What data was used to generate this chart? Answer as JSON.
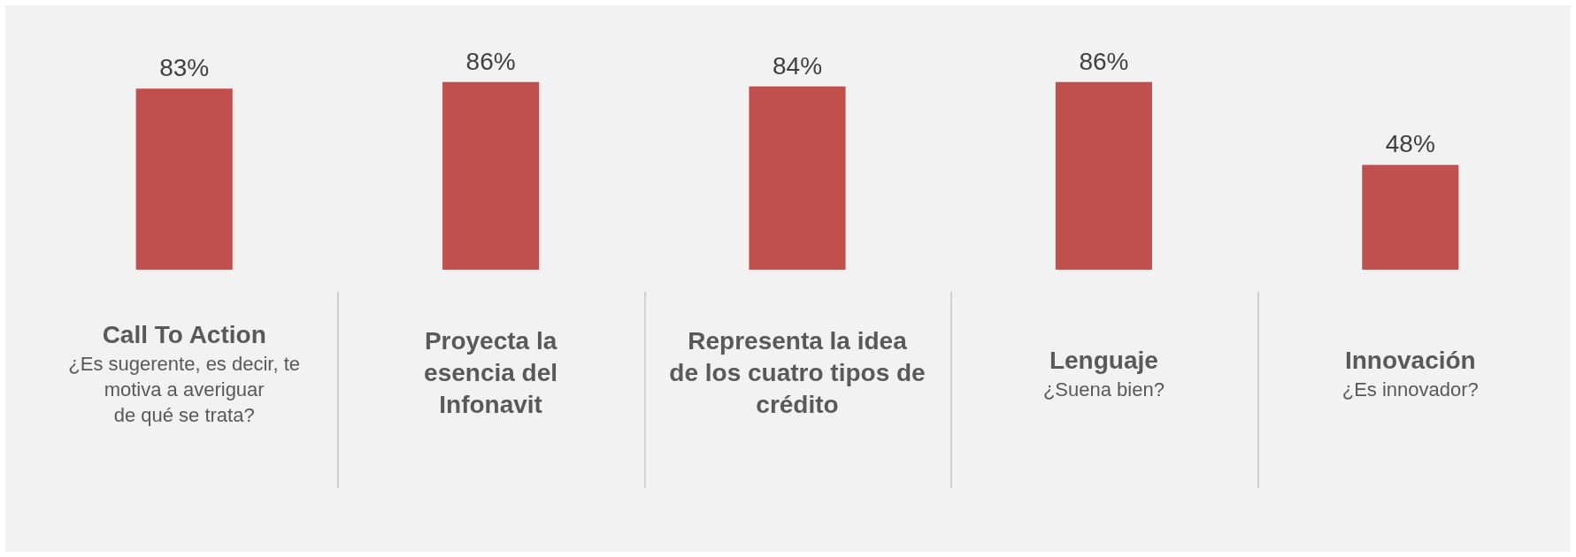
{
  "chart_data": {
    "type": "bar",
    "categories": [
      "Call To Action\n\n¿Es sugerente, es decir, te\nmotiva a averiguar\nde qué se trata?",
      "Proyecta la\nesencia del\nInfonavit",
      "Representa la idea\nde los cuatro tipos de\ncrédito",
      "Lenguaje\n\n¿Suena bien?",
      "Innovación\n\n¿Es innovador?"
    ],
    "values": [
      83,
      86,
      84,
      86,
      48
    ],
    "color": "#c0504d",
    "data_labels": true,
    "value_labels": [
      "83%",
      "86%",
      "84%",
      "86%",
      "48%"
    ],
    "legend": false
  }
}
